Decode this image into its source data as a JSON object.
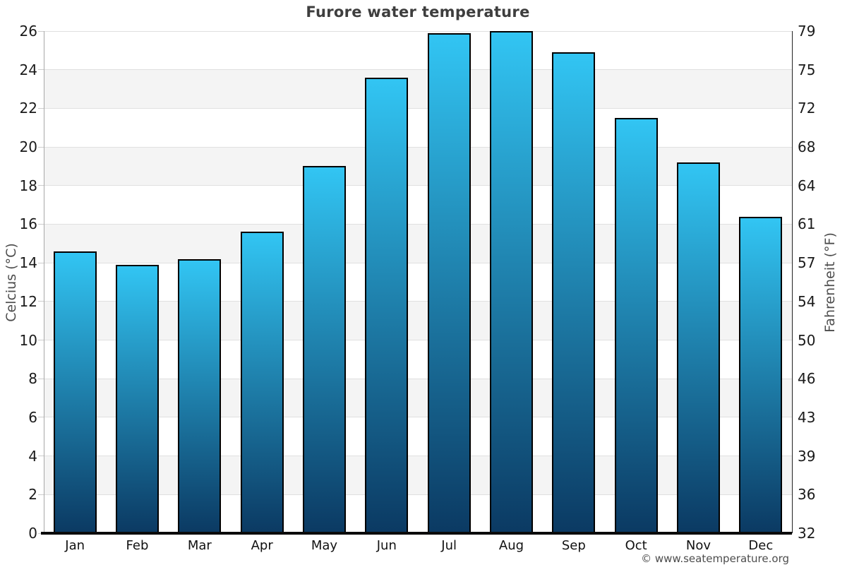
{
  "page": {
    "footer": "© www.seatemperature.org"
  },
  "chart_data": {
    "type": "bar",
    "title": "Furore water temperature",
    "categories": [
      "Jan",
      "Feb",
      "Mar",
      "Apr",
      "May",
      "Jun",
      "Jul",
      "Aug",
      "Sep",
      "Oct",
      "Nov",
      "Dec"
    ],
    "series": [
      {
        "name": "Water temperature (°C)",
        "values": [
          14.6,
          13.9,
          14.2,
          15.6,
          19.0,
          23.6,
          25.9,
          26.0,
          24.9,
          21.5,
          19.2,
          16.4
        ]
      }
    ],
    "ylabel_left": "Celcius (°C)",
    "ylabel_right": "Fahrenheit (°F)",
    "ylim": [
      0,
      26
    ],
    "yticks_left": [
      0,
      2,
      4,
      6,
      8,
      10,
      12,
      14,
      16,
      18,
      20,
      22,
      24,
      26
    ],
    "yticks_right": [
      "32",
      "36",
      "39",
      "43",
      "46",
      "50",
      "54",
      "57",
      "61",
      "64",
      "68",
      "72",
      "75",
      "79"
    ],
    "grid": "horizontal gridlines with alternating band shading",
    "legend": "none",
    "colors": {
      "bar_gradient_top": "#32c5f3",
      "bar_gradient_bottom": "#0b3a63",
      "bar_border": "#000000",
      "band_shade": "#f4f4f4",
      "gridline": "#e0e0e0",
      "title_text": "#3e3e3e"
    }
  }
}
